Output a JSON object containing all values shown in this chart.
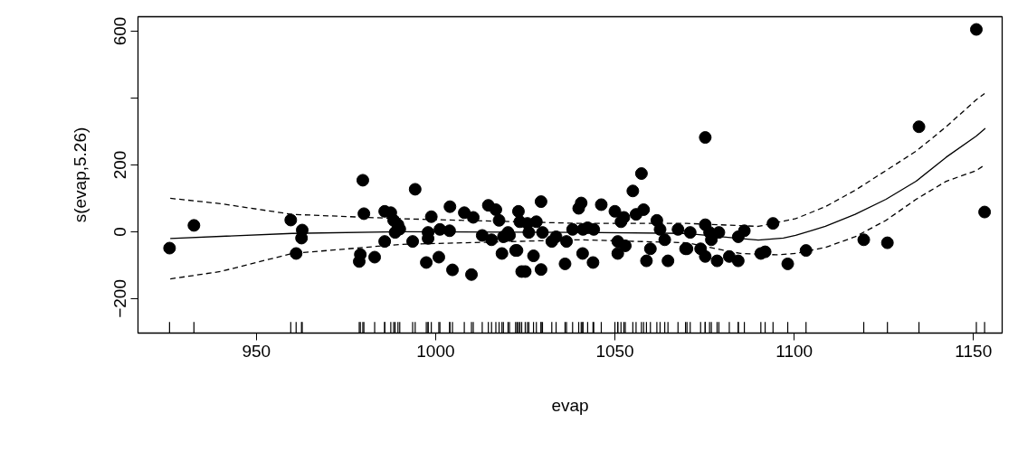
{
  "chart_data": {
    "type": "scatter",
    "xlabel": "evap",
    "ylabel": "s(evap,5.26)",
    "xlim": [
      917,
      1158
    ],
    "ylim": [
      -303,
      643
    ],
    "xticks": [
      950,
      1000,
      1050,
      1100,
      1150
    ],
    "yticks": [
      -200,
      0,
      200,
      {
        "value": 400,
        "label": null
      },
      600
    ],
    "grid": false,
    "series": [
      {
        "marker": "circle",
        "color": "#000000",
        "x": [
          925.8,
          932.6,
          959.6,
          961.1,
          962.6,
          962.8,
          978.7,
          979,
          979.7,
          980,
          983,
          985.8,
          987.5,
          988.3,
          989.5,
          990,
          988.7,
          985.8,
          994.3,
          993.6,
          998.8,
          997.9,
          997.9,
          1001.2,
          1003.9,
          1004,
          997.4,
          1000.9,
          1004.7,
          1008,
          1010.5,
          1010,
          1013,
          1014.7,
          1016.8,
          1017.7,
          1015.6,
          1018.9,
          1020.2,
          1018.5,
          1022.3,
          1023.1,
          1024,
          1020.6,
          1023.5,
          1025.6,
          1026,
          1028.1,
          1029.8,
          1029.4,
          1022.7,
          1027.3,
          1025,
          1029.4,
          1032.4,
          1033.6,
          1036.5,
          1036.1,
          1038.2,
          1039.9,
          1040.6,
          1041.1,
          1042.4,
          1044.1,
          1041,
          1043.9,
          1046.2,
          1050,
          1051.7,
          1052.5,
          1050.8,
          1052.9,
          1050.8,
          1055,
          1057.4,
          1055.9,
          1058,
          1061.7,
          1062.6,
          1063.9,
          1059.9,
          1058.8,
          1064.8,
          1067.6,
          1069.7,
          1075.2,
          1071,
          1075.2,
          1076.4,
          1076.9,
          1079,
          1084.4,
          1086.1,
          1094.1,
          1070.1,
          1073.9,
          1075.2,
          1078.5,
          1081.9,
          1084.4,
          1090.7,
          1091.9,
          1098.2,
          1103.3,
          1119.4,
          1126,
          1134.8,
          1150.8,
          1153.1
        ],
        "values": [
          -49,
          19,
          35,
          -65,
          -19,
          5,
          -89,
          -68,
          154,
          54,
          -76,
          61,
          57,
          34,
          21,
          8,
          -2,
          -29,
          127,
          -29,
          45,
          -2,
          -20,
          7,
          3,
          75,
          -92,
          -76,
          -114,
          57,
          43,
          -128,
          -11,
          79,
          66,
          34,
          -24,
          -15,
          -2,
          -65,
          -56,
          61,
          -119,
          -11,
          30,
          25,
          -2,
          30,
          -2,
          90,
          -56,
          -72,
          -119,
          -113,
          -29,
          -15,
          -29,
          -96,
          7,
          70,
          86,
          7,
          12,
          7,
          -65,
          -92,
          81,
          61,
          30,
          43,
          -29,
          -42,
          -65,
          122,
          174,
          52,
          66,
          34,
          7,
          -24,
          -51,
          -87,
          -87,
          7,
          -51,
          282,
          -2,
          21,
          -2,
          -24,
          -2,
          -15,
          3,
          25,
          -51,
          -51,
          -74,
          -87,
          -74,
          -87,
          -65,
          -60,
          -96,
          -56,
          -24,
          -33,
          314,
          605,
          59
        ]
      },
      {
        "type": "line",
        "line_style": "solid",
        "color": "#000000",
        "x": [
          926,
          960,
          990,
          1040,
          1070,
          1085,
          1090,
          1097,
          1100.4,
          1108.7,
          1117,
          1125.6,
          1134,
          1142.4,
          1150.8,
          1153.3
        ],
        "values": [
          -20,
          -5,
          0,
          -2,
          -5,
          -20,
          -25,
          -19,
          -11,
          16,
          52,
          97,
          151,
          223,
          286,
          309
        ]
      },
      {
        "type": "line",
        "line_style": "dashed",
        "color": "#000000",
        "x": [
          926,
          940,
          960,
          990,
          1040,
          1070,
          1090,
          1100.4,
          1108.7,
          1117,
          1125.6,
          1134,
          1142.4,
          1150.8,
          1153.1
        ],
        "values": [
          100,
          84,
          52,
          39,
          25,
          25,
          16,
          39,
          75,
          124,
          183,
          241,
          314,
          395,
          413
        ]
      },
      {
        "type": "line",
        "line_style": "dashed",
        "color": "#000000",
        "x": [
          926,
          940,
          960,
          990,
          1040,
          1070,
          1085,
          1095,
          1100.4,
          1108.7,
          1117,
          1125.6,
          1134,
          1142.4,
          1150.8,
          1153.3
        ],
        "values": [
          -141,
          -119,
          -65,
          -38,
          -24,
          -33,
          -65,
          -69,
          -65,
          -47,
          -15,
          34,
          97,
          151,
          183,
          201
        ]
      }
    ]
  }
}
